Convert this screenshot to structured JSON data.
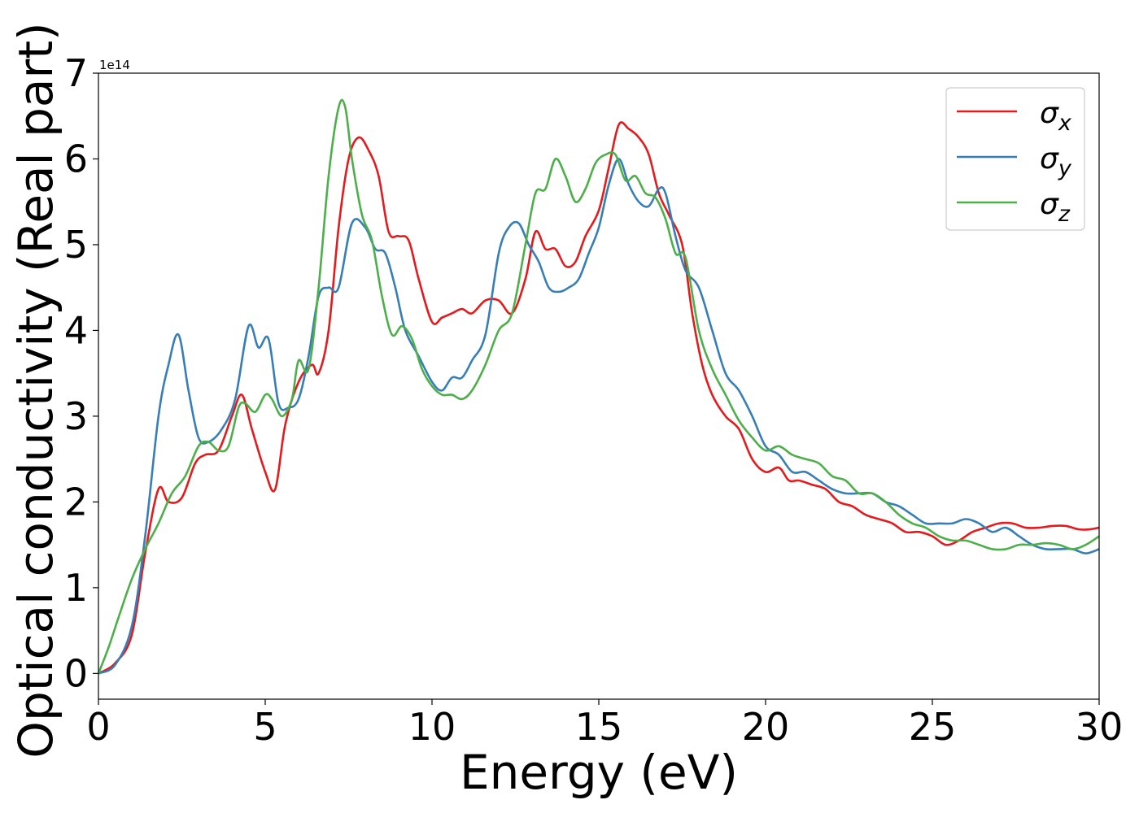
{
  "chart_data": {
    "type": "line",
    "title": "",
    "xlabel": "Energy (eV)",
    "ylabel": "Optical conductivity (Real part)",
    "y_offset_text": "1e14",
    "xlim": [
      0,
      30
    ],
    "ylim": [
      -0.3,
      7.0
    ],
    "xticks": [
      0,
      5,
      10,
      15,
      20,
      25,
      30
    ],
    "yticks": [
      0,
      1,
      2,
      3,
      4,
      5,
      6,
      7
    ],
    "grid": false,
    "legend_position": "top-right",
    "series": [
      {
        "name": "σx",
        "sub": "x",
        "color": "#e41a1c",
        "x": [
          0,
          0.5,
          1.0,
          1.4,
          1.8,
          2.1,
          2.5,
          2.9,
          3.2,
          3.6,
          4.0,
          4.3,
          4.6,
          5.0,
          5.3,
          5.6,
          6.0,
          6.4,
          6.6,
          6.9,
          7.2,
          7.5,
          7.8,
          8.1,
          8.4,
          8.7,
          9.0,
          9.3,
          9.6,
          10.0,
          10.3,
          10.6,
          10.9,
          11.2,
          11.6,
          12.0,
          12.4,
          12.8,
          13.1,
          13.4,
          13.7,
          14.0,
          14.3,
          14.6,
          15.0,
          15.3,
          15.6,
          15.9,
          16.2,
          16.5,
          16.8,
          17.1,
          17.5,
          17.8,
          18.1,
          18.4,
          18.8,
          19.2,
          19.6,
          20.0,
          20.4,
          20.7,
          21.0,
          21.4,
          21.8,
          22.2,
          22.6,
          23.0,
          23.4,
          23.8,
          24.2,
          24.6,
          25.0,
          25.4,
          25.8,
          26.2,
          26.6,
          27.0,
          27.4,
          27.8,
          28.2,
          28.6,
          29.0,
          29.4,
          29.7,
          30.0
        ],
        "values": [
          0,
          0.12,
          0.45,
          1.4,
          2.15,
          2.0,
          2.05,
          2.45,
          2.55,
          2.6,
          3.0,
          3.25,
          2.85,
          2.35,
          2.15,
          2.9,
          3.4,
          3.6,
          3.5,
          4.0,
          5.2,
          6.0,
          6.25,
          6.1,
          5.8,
          5.15,
          5.1,
          5.05,
          4.6,
          4.1,
          4.15,
          4.2,
          4.25,
          4.2,
          4.35,
          4.35,
          4.2,
          4.6,
          5.15,
          4.95,
          4.95,
          4.75,
          4.8,
          5.1,
          5.4,
          5.9,
          6.4,
          6.35,
          6.25,
          6.05,
          5.6,
          5.35,
          5.0,
          4.2,
          3.6,
          3.25,
          3.0,
          2.85,
          2.5,
          2.35,
          2.4,
          2.25,
          2.25,
          2.2,
          2.15,
          2.0,
          1.95,
          1.85,
          1.8,
          1.75,
          1.65,
          1.65,
          1.6,
          1.5,
          1.55,
          1.65,
          1.7,
          1.75,
          1.75,
          1.7,
          1.7,
          1.72,
          1.72,
          1.68,
          1.68,
          1.7
        ]
      },
      {
        "name": "σy",
        "sub": "y",
        "color": "#377eb8",
        "x": [
          0,
          0.5,
          1.0,
          1.4,
          1.8,
          2.1,
          2.4,
          2.7,
          3.0,
          3.3,
          3.7,
          4.1,
          4.5,
          4.8,
          5.1,
          5.4,
          5.7,
          6.0,
          6.3,
          6.6,
          6.9,
          7.2,
          7.6,
          8.0,
          8.3,
          8.6,
          8.9,
          9.2,
          9.6,
          10.0,
          10.3,
          10.6,
          10.9,
          11.2,
          11.6,
          12.0,
          12.3,
          12.6,
          12.9,
          13.2,
          13.5,
          13.8,
          14.1,
          14.4,
          14.7,
          15.0,
          15.3,
          15.6,
          15.9,
          16.2,
          16.5,
          16.8,
          17.0,
          17.3,
          17.6,
          18.0,
          18.4,
          18.8,
          19.2,
          19.6,
          20.0,
          20.4,
          20.8,
          21.2,
          21.6,
          22.0,
          22.4,
          22.8,
          23.2,
          23.6,
          24.0,
          24.4,
          24.8,
          25.2,
          25.6,
          26.0,
          26.4,
          26.8,
          27.2,
          27.6,
          28.0,
          28.4,
          28.8,
          29.2,
          29.6,
          30.0
        ],
        "values": [
          0,
          0.1,
          0.55,
          1.6,
          3.0,
          3.6,
          3.95,
          3.3,
          2.75,
          2.7,
          2.85,
          3.2,
          4.05,
          3.8,
          3.9,
          3.15,
          3.1,
          3.2,
          3.7,
          4.4,
          4.5,
          4.5,
          5.25,
          5.2,
          4.95,
          4.9,
          4.5,
          4.0,
          3.7,
          3.4,
          3.3,
          3.45,
          3.45,
          3.65,
          3.95,
          4.9,
          5.2,
          5.25,
          5.0,
          4.8,
          4.5,
          4.45,
          4.5,
          4.6,
          4.9,
          5.2,
          5.7,
          6.0,
          5.7,
          5.5,
          5.45,
          5.65,
          5.6,
          5.1,
          4.7,
          4.5,
          4.0,
          3.5,
          3.3,
          3.0,
          2.65,
          2.55,
          2.35,
          2.35,
          2.25,
          2.15,
          2.1,
          2.1,
          2.1,
          2.0,
          1.95,
          1.85,
          1.75,
          1.75,
          1.75,
          1.8,
          1.75,
          1.65,
          1.7,
          1.6,
          1.5,
          1.45,
          1.45,
          1.45,
          1.4,
          1.45
        ]
      },
      {
        "name": "σz",
        "sub": "z",
        "color": "#4daf4a",
        "x": [
          0,
          0.3,
          0.6,
          1.0,
          1.4,
          1.8,
          2.2,
          2.6,
          3.0,
          3.3,
          3.6,
          3.9,
          4.2,
          4.4,
          4.7,
          5.0,
          5.2,
          5.5,
          5.8,
          6.0,
          6.3,
          6.6,
          6.9,
          7.2,
          7.4,
          7.6,
          7.9,
          8.2,
          8.5,
          8.8,
          9.1,
          9.4,
          9.7,
          10.0,
          10.3,
          10.6,
          10.9,
          11.2,
          11.6,
          12.0,
          12.4,
          12.8,
          13.1,
          13.4,
          13.7,
          14.0,
          14.3,
          14.6,
          14.9,
          15.2,
          15.5,
          15.8,
          16.1,
          16.4,
          16.7,
          17.0,
          17.3,
          17.6,
          18.0,
          18.4,
          18.8,
          19.2,
          19.6,
          20.0,
          20.4,
          20.8,
          21.2,
          21.6,
          22.0,
          22.4,
          22.8,
          23.2,
          23.6,
          24.0,
          24.4,
          24.8,
          25.2,
          25.6,
          26.0,
          26.4,
          26.8,
          27.2,
          27.6,
          28.0,
          28.4,
          28.8,
          29.2,
          29.6,
          30.0
        ],
        "values": [
          0,
          0.3,
          0.65,
          1.1,
          1.45,
          1.75,
          2.1,
          2.3,
          2.65,
          2.7,
          2.6,
          2.65,
          3.1,
          3.15,
          3.05,
          3.25,
          3.2,
          3.0,
          3.2,
          3.65,
          3.55,
          4.5,
          5.8,
          6.6,
          6.6,
          6.0,
          5.35,
          5.05,
          4.4,
          3.95,
          4.05,
          3.9,
          3.55,
          3.35,
          3.25,
          3.25,
          3.2,
          3.3,
          3.6,
          4.0,
          4.2,
          5.0,
          5.6,
          5.65,
          6.0,
          5.8,
          5.5,
          5.65,
          5.95,
          6.05,
          6.05,
          5.75,
          5.8,
          5.6,
          5.55,
          5.3,
          4.9,
          4.85,
          4.0,
          3.55,
          3.25,
          2.95,
          2.75,
          2.6,
          2.65,
          2.55,
          2.5,
          2.45,
          2.3,
          2.25,
          2.1,
          2.1,
          2.0,
          1.85,
          1.75,
          1.7,
          1.6,
          1.55,
          1.55,
          1.5,
          1.45,
          1.45,
          1.5,
          1.5,
          1.52,
          1.5,
          1.45,
          1.5,
          1.6
        ]
      }
    ]
  }
}
